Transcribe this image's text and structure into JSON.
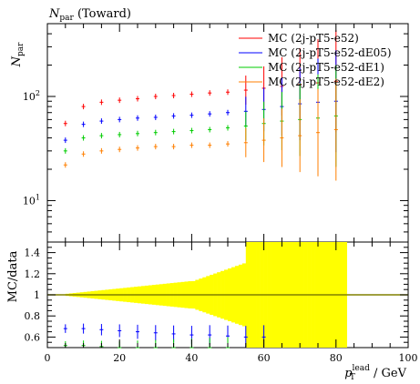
{
  "chart_data": [
    {
      "type": "scatter",
      "panel": "main",
      "title": "N_par (Toward)",
      "title_main": "N",
      "title_sub": "par",
      "title_rest": " (Toward)",
      "ylabel_main": "N",
      "ylabel_sub": "par",
      "yscale": "log",
      "ylim": [
        4,
        500
      ],
      "xlim": [
        0,
        100
      ],
      "yticks": [
        {
          "value": 10,
          "base": "10",
          "exp": "1"
        },
        {
          "value": 100,
          "base": "10",
          "exp": "2"
        }
      ],
      "legend_position": "top-right",
      "series": [
        {
          "name": "MC (2j-pT5-e52)",
          "color": "#ff0000",
          "x": [
            5,
            10,
            15,
            20,
            25,
            30,
            35,
            40,
            45,
            50,
            55,
            60,
            65,
            70,
            75,
            80
          ],
          "y": [
            55,
            80,
            88,
            92,
            95,
            100,
            102,
            105,
            108,
            110,
            115,
            120,
            125,
            130,
            135,
            140
          ]
        },
        {
          "name": "MC (2j-pT5-e52-dE05)",
          "color": "#0000ff",
          "x": [
            5,
            10,
            15,
            20,
            25,
            30,
            35,
            40,
            45,
            50,
            55,
            60,
            65,
            70,
            75,
            80
          ],
          "y": [
            38,
            54,
            58,
            60,
            62,
            63,
            65,
            66,
            68,
            70,
            72,
            75,
            80,
            85,
            88,
            90
          ]
        },
        {
          "name": "MC (2j-pT5-e52-dE1)",
          "color": "#00cc00",
          "x": [
            5,
            10,
            15,
            20,
            25,
            30,
            35,
            40,
            45,
            50,
            55,
            60,
            65,
            70,
            75,
            80
          ],
          "y": [
            30,
            40,
            42,
            43,
            44,
            45,
            46,
            47,
            48,
            50,
            52,
            55,
            58,
            60,
            62,
            65
          ]
        },
        {
          "name": "MC (2j-pT5-e52-dE2)",
          "color": "#ff7f00",
          "x": [
            5,
            10,
            15,
            20,
            25,
            30,
            35,
            40,
            45,
            50,
            55,
            60,
            65,
            70,
            75,
            80
          ],
          "y": [
            22,
            28,
            30,
            31,
            32,
            33,
            33,
            34,
            34,
            35,
            36,
            38,
            40,
            42,
            45,
            48
          ]
        }
      ]
    },
    {
      "type": "scatter",
      "panel": "ratio",
      "ylabel": "MC/data",
      "xlabel_main": "p",
      "xlabel_sub": "T",
      "xlabel_sup": "lead",
      "xlabel_rest": " / GeV",
      "ylim": [
        0.5,
        1.5
      ],
      "xlim": [
        0,
        100
      ],
      "yticks": [
        "0.6",
        "0.8",
        "1",
        "1.2",
        "1.4"
      ],
      "xticks": [
        "0",
        "20",
        "40",
        "60",
        "80",
        "100"
      ],
      "band_color": "#ffff00",
      "reference_color": "#808000",
      "series": [
        {
          "name": "MC (2j-pT5-e52-dE05)",
          "color": "#0000ff",
          "x": [
            5,
            10,
            15,
            20,
            25,
            30,
            35,
            40,
            45,
            50,
            55,
            60
          ],
          "y": [
            0.68,
            0.68,
            0.67,
            0.66,
            0.65,
            0.64,
            0.63,
            0.62,
            0.62,
            0.61,
            0.6,
            0.6
          ]
        },
        {
          "name": "MC (2j-pT5-e52-dE1)",
          "color": "#00cc00",
          "x": [
            5,
            10,
            15,
            20,
            25,
            30,
            35,
            40,
            45,
            50
          ],
          "y": [
            0.52,
            0.52,
            0.51,
            0.5,
            0.5,
            0.5,
            0.5,
            0.5,
            0.5,
            0.5
          ]
        }
      ]
    }
  ]
}
